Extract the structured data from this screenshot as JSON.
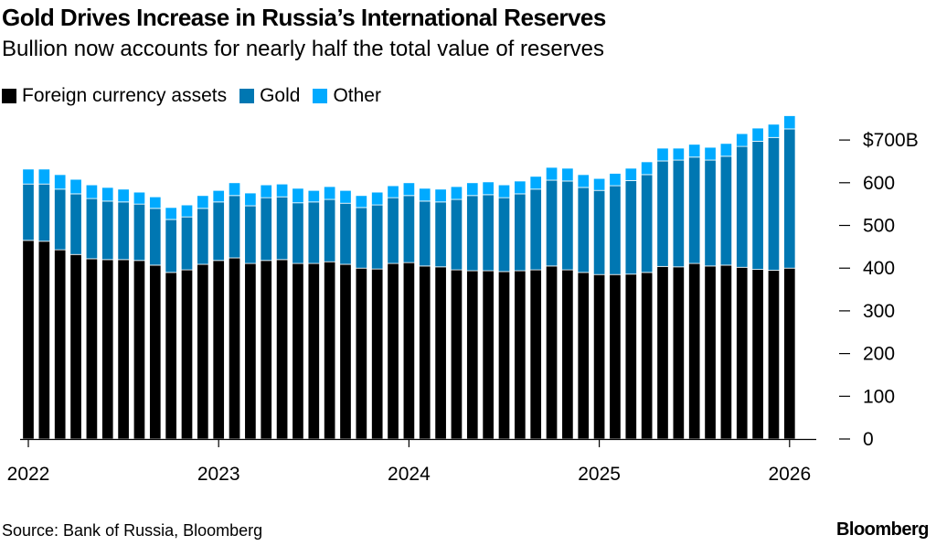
{
  "chart_data": {
    "type": "bar",
    "stacked": true,
    "title": "Gold Drives Increase in Russia’s International Reserves",
    "subtitle": "Bullion now accounts for nearly half the total value of reserves",
    "xlabel": "",
    "ylabel": "",
    "ylim": [
      0,
      750
    ],
    "y_ticks": [
      0,
      100,
      200,
      300,
      400,
      500,
      600,
      700
    ],
    "y_tick_labels": [
      "0",
      "100",
      "200",
      "300",
      "400",
      "500",
      "600",
      "$700B"
    ],
    "x_tick_labels": [
      "2022",
      "2023",
      "2024",
      "2025",
      "2026"
    ],
    "x_tick_indices": [
      0,
      12,
      24,
      36,
      48
    ],
    "categories": [
      "2022-01",
      "2022-02",
      "2022-03",
      "2022-04",
      "2022-05",
      "2022-06",
      "2022-07",
      "2022-08",
      "2022-09",
      "2022-10",
      "2022-11",
      "2022-12",
      "2023-01",
      "2023-02",
      "2023-03",
      "2023-04",
      "2023-05",
      "2023-06",
      "2023-07",
      "2023-08",
      "2023-09",
      "2023-10",
      "2023-11",
      "2023-12",
      "2024-01",
      "2024-02",
      "2024-03",
      "2024-04",
      "2024-05",
      "2024-06",
      "2024-07",
      "2024-08",
      "2024-09",
      "2024-10",
      "2024-11",
      "2024-12",
      "2025-01",
      "2025-02",
      "2025-03",
      "2025-04",
      "2025-05",
      "2025-06",
      "2025-07",
      "2025-08",
      "2025-09",
      "2025-10",
      "2025-11",
      "2025-12",
      "2026-01"
    ],
    "series": [
      {
        "name": "Foreign currency assets",
        "color": "#000000",
        "values": [
          465,
          463,
          443,
          432,
          422,
          420,
          420,
          418,
          407,
          390,
          396,
          409,
          418,
          424,
          411,
          418,
          420,
          411,
          411,
          415,
          409,
          400,
          398,
          411,
          413,
          405,
          403,
          396,
          394,
          394,
          392,
          394,
          396,
          405,
          396,
          390,
          385,
          385,
          386,
          390,
          404,
          403,
          411,
          405,
          407,
          402,
          397,
          395,
          400
        ]
      },
      {
        "name": "Gold",
        "color": "#0077b2",
        "values": [
          132,
          134,
          142,
          142,
          141,
          137,
          135,
          132,
          133,
          124,
          124,
          131,
          137,
          146,
          135,
          147,
          147,
          142,
          144,
          146,
          143,
          142,
          150,
          154,
          157,
          152,
          152,
          165,
          176,
          178,
          173,
          180,
          189,
          201,
          208,
          199,
          197,
          208,
          219,
          229,
          247,
          250,
          249,
          248,
          255,
          283,
          300,
          311,
          326
        ]
      },
      {
        "name": "Other",
        "color": "#00aaff",
        "values": [
          35,
          35,
          34,
          34,
          32,
          32,
          30,
          28,
          27,
          28,
          28,
          30,
          27,
          30,
          30,
          30,
          30,
          34,
          27,
          30,
          30,
          28,
          30,
          28,
          30,
          30,
          30,
          30,
          30,
          30,
          30,
          30,
          30,
          30,
          30,
          30,
          28,
          29,
          29,
          30,
          30,
          28,
          30,
          30,
          30,
          30,
          31,
          31,
          31
        ]
      }
    ],
    "legend_position": "top-left",
    "grid": false
  },
  "footer": {
    "source": "Source: Bank of Russia, Bloomberg",
    "brand": "Bloomberg"
  }
}
